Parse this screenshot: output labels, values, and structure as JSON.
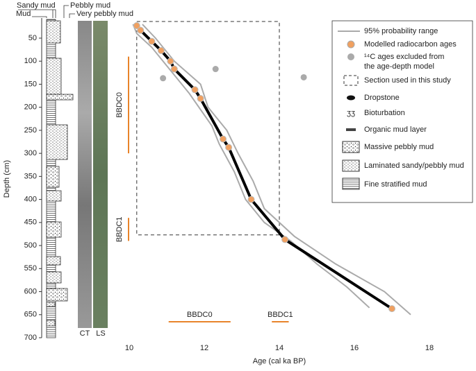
{
  "chart_data": {
    "type": "age-depth",
    "x_label": "Age (cal ka BP)",
    "y_label": "Depth (cm)",
    "xlim": [
      10,
      18
    ],
    "xticks": [
      10,
      12,
      14,
      16,
      18
    ],
    "ylim": [
      10,
      700
    ],
    "yticks": [
      50,
      100,
      150,
      200,
      250,
      300,
      350,
      400,
      450,
      500,
      550,
      600,
      650,
      700
    ],
    "log_labels": {
      "sandy_mud": "Sandy mud",
      "mud": "Mud",
      "pebbly_mud": "Pebbly mud",
      "very_pebbly_mud": "Very pebbly mud",
      "ct": "CT",
      "ls": "LS"
    },
    "range": {
      "name": "95% probability range",
      "color": "#aaaaaa",
      "upper": {
        "x": [
          10.1,
          10.2,
          10.6,
          11,
          11.6,
          12.2,
          12.4,
          12.8,
          13.1,
          13.6,
          14.3,
          15,
          15.8,
          16.4
        ],
        "y": [
          20,
          40,
          70,
          110,
          170,
          240,
          280,
          340,
          400,
          450,
          490,
          540,
          590,
          635
        ]
      },
      "lower": {
        "x": [
          10.35,
          10.7,
          11.2,
          11.9,
          12.1,
          12.6,
          12.9,
          13.3,
          13.6,
          14.4,
          15.5,
          16.8,
          17.5
        ],
        "y": [
          20,
          50,
          100,
          150,
          200,
          250,
          300,
          360,
          420,
          480,
          540,
          600,
          650
        ]
      }
    },
    "modelled": {
      "name": "Modelled radiocarbon ages",
      "color": "#f0a060",
      "x": [
        10.2,
        10.3,
        10.6,
        10.85,
        11.1,
        11.2,
        11.75,
        11.9,
        12.5,
        12.65,
        13.25,
        14.15,
        17
      ],
      "y": [
        23,
        33,
        57,
        77,
        100,
        117,
        162,
        181,
        269,
        287,
        400,
        487,
        637
      ]
    },
    "excluded": {
      "name_lines": [
        "¹⁴C ages excluded from",
        "the age-depth model"
      ],
      "color": "#aaaaaa",
      "x": [
        10.9,
        12.3,
        14.65
      ],
      "y": [
        137,
        117,
        135
      ]
    },
    "section": {
      "name": "Section used in this study",
      "xlim": [
        10.2,
        14
      ],
      "ylim": [
        14,
        477
      ]
    },
    "vertical_bars": [
      {
        "label": "BBDC0",
        "ylim": [
          90,
          300
        ]
      },
      {
        "label": "BBDC1",
        "ylim": [
          440,
          490
        ]
      }
    ],
    "horizontal_bars": [
      {
        "label": "BBDC0",
        "xlim": [
          11.05,
          12.7
        ]
      },
      {
        "label": "BBDC1",
        "xlim": [
          13.8,
          14.25
        ]
      }
    ],
    "bar_color": "#e8832a",
    "legend_items": [
      "Dropstone",
      "Bioturbation",
      "Organic mud layer",
      "Massive pebbly mud",
      "Laminated sandy/pebbly mud",
      "Fine stratified mud"
    ]
  }
}
